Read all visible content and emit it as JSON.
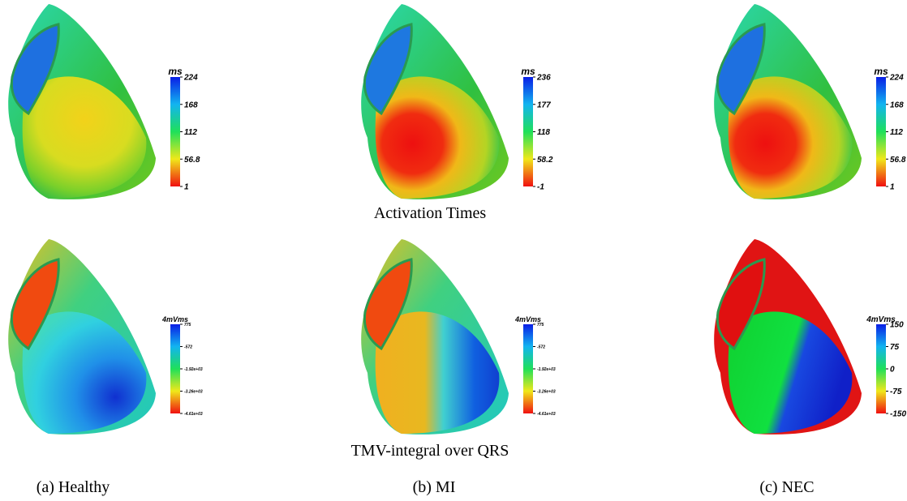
{
  "rows": [
    {
      "caption": "Activation Times",
      "panels": [
        {
          "unit": "ms",
          "ticks": [
            "224",
            "168",
            "112",
            "56.8",
            "1"
          ]
        },
        {
          "unit": "ms",
          "ticks": [
            "236",
            "177",
            "118",
            "58.2",
            "-1"
          ]
        },
        {
          "unit": "ms",
          "ticks": [
            "224",
            "168",
            "112",
            "56.8",
            "1"
          ]
        }
      ]
    },
    {
      "caption": "TMV-integral over QRS",
      "panels": [
        {
          "unit": "4mVms",
          "ticks": [
            "775",
            "-572",
            "-1.92e+03",
            "-3.26e+03",
            "-4.61e+03"
          ]
        },
        {
          "unit": "4mVms",
          "ticks": [
            "775",
            "-572",
            "-1.92e+03",
            "-3.26e+03",
            "-4.61e+03"
          ]
        },
        {
          "unit": "4mVms",
          "ticks": [
            "150",
            "75",
            "0",
            "-75",
            "-150"
          ]
        }
      ]
    }
  ],
  "labels": [
    "(a) Healthy",
    "(b) MI",
    "(c) NEC"
  ]
}
